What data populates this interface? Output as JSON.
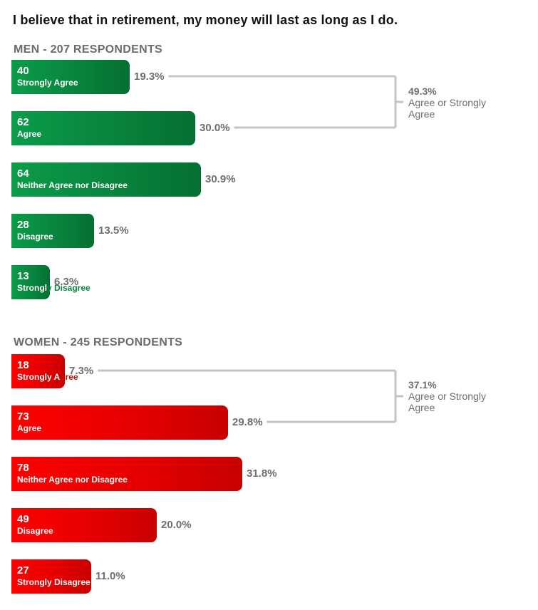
{
  "title": "I believe that in retirement, my money will last as long as I do.",
  "chart_data": {
    "type": "bar",
    "orientation": "horizontal",
    "title": "I believe that in retirement, my money will last as long as I do.",
    "groups": [
      {
        "name": "MEN - 207 RESPONDENTS",
        "color": "#08843d",
        "label_color_outside": "#08843d",
        "items": [
          {
            "label": "Strongly Agree",
            "count": 40,
            "pct": "19.3%"
          },
          {
            "label": "Agree",
            "count": 62,
            "pct": "30.0%"
          },
          {
            "label": "Neither Agree nor Disagree",
            "count": 64,
            "pct": "30.9%"
          },
          {
            "label": "Disagree",
            "count": 28,
            "pct": "13.5%"
          },
          {
            "label": "Strongly Disagree",
            "count": 13,
            "pct": "6.3%"
          }
        ],
        "bracket": {
          "pct": "49.3%",
          "label": "Agree or Strongly Agree"
        }
      },
      {
        "name": "WOMEN - 245 RESPONDENTS",
        "color": "#e60000",
        "label_color_outside": "#d00000",
        "items": [
          {
            "label": "Strongly Agree",
            "count": 18,
            "pct": "7.3%"
          },
          {
            "label": "Agree",
            "count": 73,
            "pct": "29.8%"
          },
          {
            "label": "Neither Agree nor Disagree",
            "count": 78,
            "pct": "31.8%"
          },
          {
            "label": "Disagree",
            "count": 49,
            "pct": "20.0%"
          },
          {
            "label": "Strongly Disagree",
            "count": 27,
            "pct": "11.0%"
          }
        ],
        "bracket": {
          "pct": "37.1%",
          "label": "Agree or Strongly Agree"
        }
      }
    ]
  }
}
